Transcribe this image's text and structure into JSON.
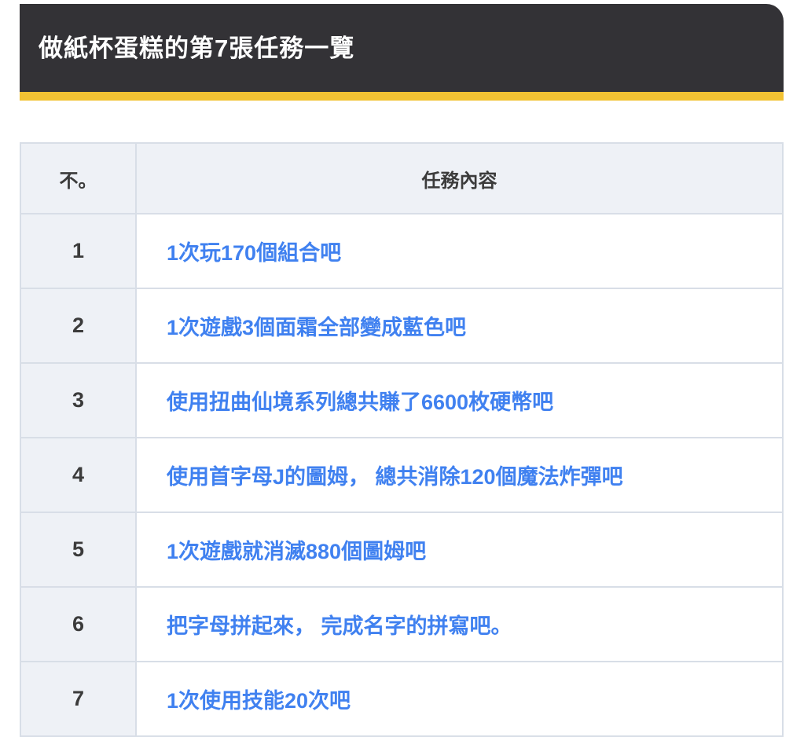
{
  "header": {
    "title": "做紙杯蛋糕的第7張任務一覽",
    "background_color": "#333236",
    "accent_bar_color": "#f2c233",
    "text_color": "#ffffff"
  },
  "table": {
    "columns": {
      "no_label": "不。",
      "task_label": "任務內容"
    },
    "rows": [
      {
        "no": "1",
        "task": "1次玩170個組合吧"
      },
      {
        "no": "2",
        "task": "1次遊戲3個面霜全部變成藍色吧"
      },
      {
        "no": "3",
        "task": "使用扭曲仙境系列總共賺了6600枚硬幣吧"
      },
      {
        "no": "4",
        "task": "使用首字母J的圖姆， 總共消除120個魔法炸彈吧"
      },
      {
        "no": "5",
        "task": "1次遊戲就消滅880個圖姆吧"
      },
      {
        "no": "6",
        "task": "把字母拼起來， 完成名字的拼寫吧。"
      },
      {
        "no": "7",
        "task": "1次使用技能20次吧"
      }
    ],
    "colors": {
      "header_cell_background": "#eef1f6",
      "number_cell_background": "#eef1f6",
      "task_cell_background": "#ffffff",
      "border": "#d8dee7",
      "number_text": "#3b3b3b",
      "task_link_text": "#4081f0"
    }
  }
}
